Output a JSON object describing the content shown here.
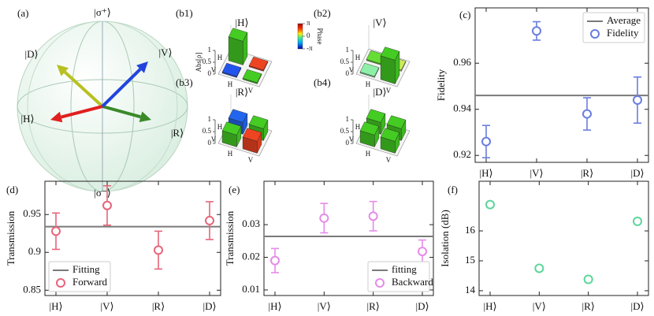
{
  "bloch": {
    "panel": "(a)",
    "labels": [
      "|σ⁺⟩",
      "|D⟩",
      "|V⟩",
      "|H⟩",
      "|R⟩",
      "|σ⁻⟩"
    ]
  },
  "chart_data": [
    {
      "type": "bar3d",
      "panel": "(b1)",
      "title": "|H⟩",
      "rows": [
        "H",
        "V"
      ],
      "cols": [
        "H",
        "V"
      ],
      "zlim": [
        0,
        1
      ],
      "zticks": [
        0,
        0.5,
        1
      ],
      "zlabel": "Abs[ρ]",
      "values": [
        [
          1,
          0.05
        ],
        [
          0.05,
          0.05
        ]
      ],
      "colors": [
        [
          "#44cc22",
          "#ee4422"
        ],
        [
          "#2255ee",
          "#44cc22"
        ]
      ],
      "colorbar": {
        "label": "Phase",
        "lim": [
          -3.14159,
          3.14159
        ],
        "ticks": [
          {
            "value": 3.14159,
            "label": "π"
          },
          0,
          {
            "value": -3.14159,
            "label": "-π"
          }
        ]
      }
    },
    {
      "type": "bar3d",
      "panel": "(b2)",
      "title": "|V⟩",
      "rows": [
        "H",
        "V"
      ],
      "cols": [
        "H",
        "V"
      ],
      "zlim": [
        0,
        1
      ],
      "zticks": [
        0,
        0.5,
        1
      ],
      "values": [
        [
          0.05,
          0.05
        ],
        [
          0.05,
          1
        ]
      ],
      "colors": [
        [
          "#66dd33",
          "#c8ec5a"
        ],
        [
          "#8ef0a8",
          "#44cc22"
        ]
      ]
    },
    {
      "type": "bar3d",
      "panel": "(b3)",
      "title": "|R⟩",
      "rows": [
        "H",
        "V"
      ],
      "cols": [
        "H",
        "V"
      ],
      "zlim": [
        0,
        1
      ],
      "zticks": [
        0,
        0.5,
        1
      ],
      "values": [
        [
          0.5,
          0.5
        ],
        [
          0.5,
          0.5
        ]
      ],
      "colors": [
        [
          "#2266ee",
          "#44cc22"
        ],
        [
          "#44cc22",
          "#ee4422"
        ]
      ]
    },
    {
      "type": "bar3d",
      "panel": "(b4)",
      "title": "|D⟩",
      "rows": [
        "H",
        "V"
      ],
      "cols": [
        "H",
        "V"
      ],
      "zlim": [
        0,
        1
      ],
      "zticks": [
        0,
        0.5,
        1
      ],
      "values": [
        [
          0.5,
          0.5
        ],
        [
          0.5,
          0.5
        ]
      ],
      "colors": [
        [
          "#44cc22",
          "#44cc22"
        ],
        [
          "#44cc22",
          "#44cc22"
        ]
      ]
    },
    {
      "type": "errorbar",
      "panel": "(c)",
      "ylabel": "Fidelity",
      "categories": [
        "|H⟩",
        "|V⟩",
        "|R⟩",
        "|D⟩"
      ],
      "series": [
        {
          "name": "Fidelity",
          "color": "#6a7de0",
          "values": [
            0.926,
            0.974,
            0.938,
            0.944
          ],
          "errors": [
            0.007,
            0.004,
            0.007,
            0.01
          ]
        }
      ],
      "line": {
        "name": "Average",
        "value": 0.946,
        "color": "#7a7a7a"
      },
      "ylim": [
        0.917,
        0.984
      ],
      "yticks": [
        0.92,
        0.94,
        0.96
      ],
      "legend": "upper right"
    },
    {
      "type": "errorbar",
      "panel": "(d)",
      "ylabel": "Transmission",
      "categories": [
        "|H⟩",
        "|V⟩",
        "|R⟩",
        "|D⟩"
      ],
      "series": [
        {
          "name": "Forward",
          "color": "#e8647a",
          "values": [
            0.928,
            0.962,
            0.903,
            0.942
          ],
          "errors": [
            0.024,
            0.026,
            0.025,
            0.025
          ]
        }
      ],
      "line": {
        "name": "Fitting",
        "value": 0.934,
        "color": "#7a7a7a"
      },
      "ylim": [
        0.843,
        0.994
      ],
      "yticks": [
        0.85,
        0.9,
        0.95
      ],
      "legend": "lower left"
    },
    {
      "type": "errorbar",
      "panel": "(e)",
      "ylabel": "Transmission",
      "categories": [
        "|H⟩",
        "|V⟩",
        "|R⟩",
        "|D⟩"
      ],
      "series": [
        {
          "name": "Backward",
          "color": "#e58be8",
          "values": [
            0.019,
            0.032,
            0.0326,
            0.0218
          ],
          "errors": [
            0.0037,
            0.0045,
            0.0045,
            0.0035
          ]
        }
      ],
      "line": {
        "name": "fitting",
        "value": 0.0264,
        "color": "#7a7a7a"
      },
      "ylim": [
        0.0083,
        0.0433
      ],
      "yticks": [
        0.01,
        0.02,
        0.03
      ],
      "legend": "lower right"
    },
    {
      "type": "errorbar",
      "panel": "(f)",
      "ylabel": "Isolation (dB)",
      "categories": [
        "|H⟩",
        "|V⟩",
        "|R⟩",
        "|D⟩"
      ],
      "series": [
        {
          "color": "#5cd69a",
          "values": [
            16.88,
            14.75,
            14.38,
            16.32
          ],
          "errors": [
            0.08,
            0.08,
            0.08,
            0.08
          ]
        }
      ],
      "ylim": [
        13.84,
        17.66
      ],
      "yticks": [
        14,
        15,
        16
      ]
    }
  ]
}
